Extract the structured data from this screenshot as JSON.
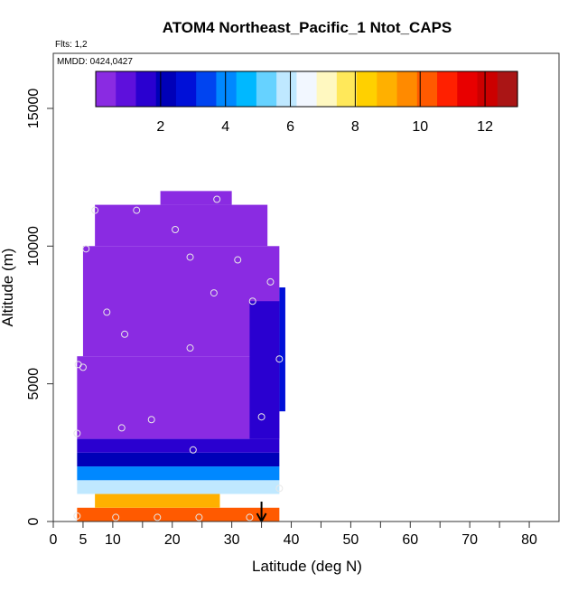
{
  "chart_data": {
    "type": "heatmap",
    "title": "ATOM4 Northeast_Pacific_1 Ntot_CAPS",
    "flights_label": "Flts: 1,2",
    "date_label": "MMDD: 0424,0427",
    "xlabel": "Latitude (deg N)",
    "ylabel": "Altitude (m)",
    "xlim": [
      0,
      85
    ],
    "ylim": [
      0,
      17000
    ],
    "x_ticks": [
      0,
      5,
      10,
      20,
      30,
      40,
      50,
      60,
      70,
      80
    ],
    "x_minor_ticks": [
      15,
      25,
      35,
      45,
      55,
      65,
      75
    ],
    "y_ticks": [
      0,
      5000,
      10000,
      15000
    ],
    "colorbar": {
      "range": [
        0,
        13
      ],
      "ticks": [
        2,
        4,
        6,
        8,
        10,
        12
      ],
      "colors": [
        "#8a2be2",
        "#5e10dc",
        "#2a00d0",
        "#0000b8",
        "#0010d8",
        "#0044f0",
        "#0088ff",
        "#00b8ff",
        "#66d2ff",
        "#bfe8ff",
        "#f2f7ff",
        "#fff8c0",
        "#ffe85a",
        "#ffd000",
        "#ffb000",
        "#ff8a00",
        "#ff5a00",
        "#ff2000",
        "#e80000",
        "#cc0000",
        "#aa1515"
      ]
    },
    "cells": [
      {
        "lat": [
          4,
          38
        ],
        "alt": [
          0,
          500
        ],
        "value": 10.5
      },
      {
        "lat": [
          7,
          28
        ],
        "alt": [
          500,
          1000
        ],
        "value": 9.0
      },
      {
        "lat": [
          4,
          38
        ],
        "alt": [
          1000,
          1500
        ],
        "value": 6.0
      },
      {
        "lat": [
          4,
          38
        ],
        "alt": [
          1500,
          2000
        ],
        "value": 4.0
      },
      {
        "lat": [
          4,
          38
        ],
        "alt": [
          2000,
          2500
        ],
        "value": 2.2
      },
      {
        "lat": [
          4,
          38
        ],
        "alt": [
          2500,
          3000
        ],
        "value": 1.6
      },
      {
        "lat": [
          4,
          38
        ],
        "alt": [
          3000,
          6000
        ],
        "value": 0.6
      },
      {
        "lat": [
          5,
          38
        ],
        "alt": [
          6000,
          10000
        ],
        "value": 0.4
      },
      {
        "lat": [
          7,
          36
        ],
        "alt": [
          10000,
          11500
        ],
        "value": 0.3
      },
      {
        "lat": [
          18,
          30
        ],
        "alt": [
          11500,
          12000
        ],
        "value": 0.3
      },
      {
        "lat": [
          33,
          38
        ],
        "alt": [
          3000,
          8000
        ],
        "value": 1.6
      },
      {
        "lat": [
          38,
          39
        ],
        "alt": [
          4000,
          8500
        ],
        "value": 3.0
      }
    ],
    "sample_points": [
      {
        "lat": 4.0,
        "alt": 3200
      },
      {
        "lat": 4.2,
        "alt": 5700
      },
      {
        "lat": 5.0,
        "alt": 5600
      },
      {
        "lat": 5.5,
        "alt": 9900
      },
      {
        "lat": 7.0,
        "alt": 11300
      },
      {
        "lat": 9.0,
        "alt": 7600
      },
      {
        "lat": 12.0,
        "alt": 6800
      },
      {
        "lat": 14.0,
        "alt": 11300
      },
      {
        "lat": 11.5,
        "alt": 3400
      },
      {
        "lat": 16.5,
        "alt": 3700
      },
      {
        "lat": 20.5,
        "alt": 10600
      },
      {
        "lat": 23.0,
        "alt": 9600
      },
      {
        "lat": 23.0,
        "alt": 6300
      },
      {
        "lat": 23.5,
        "alt": 2600
      },
      {
        "lat": 27.0,
        "alt": 8300
      },
      {
        "lat": 27.5,
        "alt": 11700
      },
      {
        "lat": 31.0,
        "alt": 9500
      },
      {
        "lat": 33.5,
        "alt": 8000
      },
      {
        "lat": 35.0,
        "alt": 3800
      },
      {
        "lat": 36.5,
        "alt": 8700
      },
      {
        "lat": 38.0,
        "alt": 5900
      },
      {
        "lat": 38.0,
        "alt": 1200
      },
      {
        "lat": 4.0,
        "alt": 200
      },
      {
        "lat": 10.5,
        "alt": 150
      },
      {
        "lat": 17.5,
        "alt": 150
      },
      {
        "lat": 24.5,
        "alt": 150
      },
      {
        "lat": 33.0,
        "alt": 150
      }
    ],
    "arrow": {
      "lat": 35
    }
  }
}
